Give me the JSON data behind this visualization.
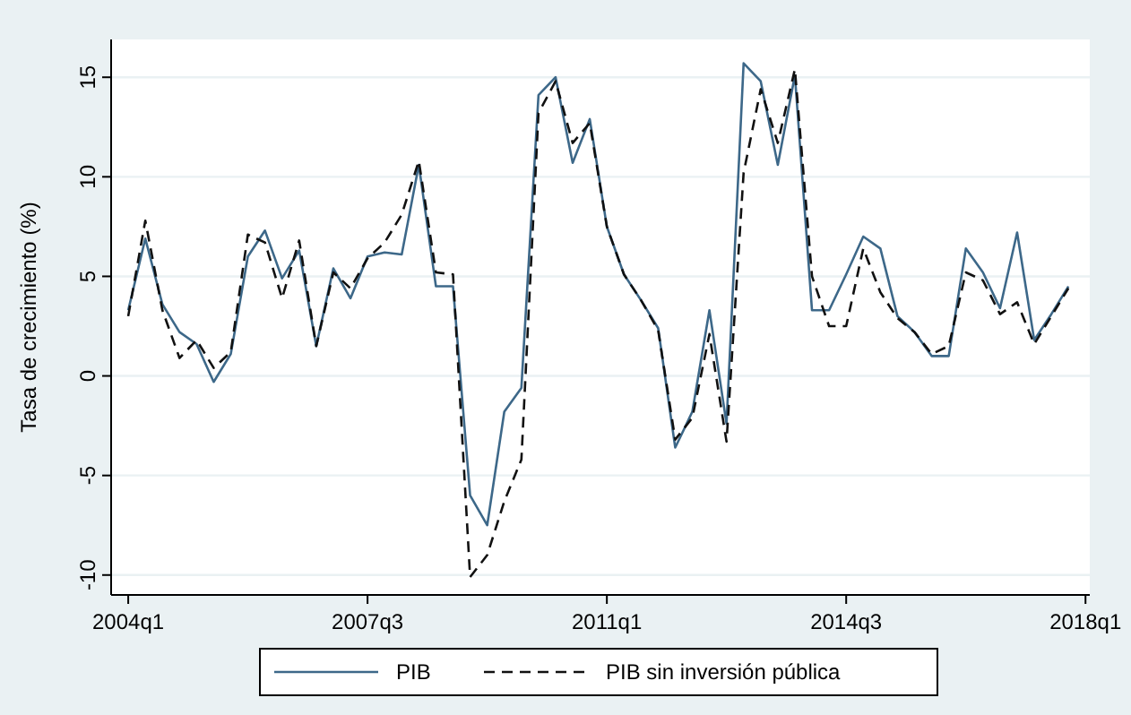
{
  "chart_data": {
    "type": "line",
    "ylabel": "Tasa de crecimiento (%)",
    "categories": [
      "2004q1",
      null,
      null,
      null,
      null,
      null,
      null,
      null,
      null,
      null,
      null,
      null,
      null,
      null,
      "2007q3",
      null,
      null,
      null,
      null,
      null,
      null,
      null,
      null,
      null,
      null,
      null,
      null,
      null,
      "2011q1",
      null,
      null,
      null,
      null,
      null,
      null,
      null,
      null,
      null,
      null,
      null,
      null,
      null,
      "2014q3",
      null,
      null,
      null,
      null,
      null,
      null,
      null,
      null,
      null,
      null,
      null,
      null,
      null,
      "2018q1"
    ],
    "series": [
      {
        "name": "PIB",
        "color": "#3d6889",
        "line_style": "solid",
        "values": [
          3.3,
          6.9,
          3.6,
          2.2,
          1.6,
          -0.3,
          1.1,
          6.0,
          7.3,
          4.9,
          6.3,
          1.5,
          5.4,
          3.9,
          6.0,
          6.2,
          6.1,
          10.6,
          4.5,
          4.5,
          -6.0,
          -7.5,
          -1.8,
          -0.6,
          14.1,
          15.0,
          10.7,
          12.9,
          7.5,
          5.1,
          3.8,
          2.4,
          -3.6,
          -1.8,
          3.3,
          -2.4,
          15.7,
          14.8,
          10.6,
          15.1,
          3.3,
          3.3,
          5.1,
          7.0,
          6.4,
          3.0,
          2.2,
          1.0,
          1.0,
          6.4,
          5.2,
          3.4,
          7.2,
          1.8,
          3.1,
          4.5,
          null
        ]
      },
      {
        "name": "PIB sin inversión pública",
        "color": "#111111",
        "line_style": "dashed",
        "values": [
          3.0,
          7.8,
          3.3,
          0.9,
          1.8,
          0.4,
          1.2,
          7.1,
          6.7,
          3.9,
          6.8,
          1.5,
          5.2,
          4.4,
          5.9,
          6.7,
          8.1,
          10.8,
          5.2,
          5.1,
          -10.1,
          -9.0,
          -6.3,
          -4.2,
          13.2,
          14.8,
          11.7,
          12.7,
          7.5,
          5.1,
          3.8,
          2.3,
          -3.2,
          -2.1,
          2.1,
          -3.3,
          10.2,
          14.4,
          11.7,
          15.4,
          5.0,
          2.5,
          2.5,
          6.4,
          4.2,
          2.9,
          2.2,
          1.1,
          1.5,
          5.2,
          4.8,
          3.1,
          3.7,
          1.6,
          3.0,
          4.4,
          null
        ]
      }
    ],
    "ylim": [
      -11,
      16.9
    ],
    "yticks": [
      -10,
      -5,
      0,
      5,
      10,
      15
    ],
    "grid": "y",
    "legend": "bottom",
    "marker": "none"
  }
}
